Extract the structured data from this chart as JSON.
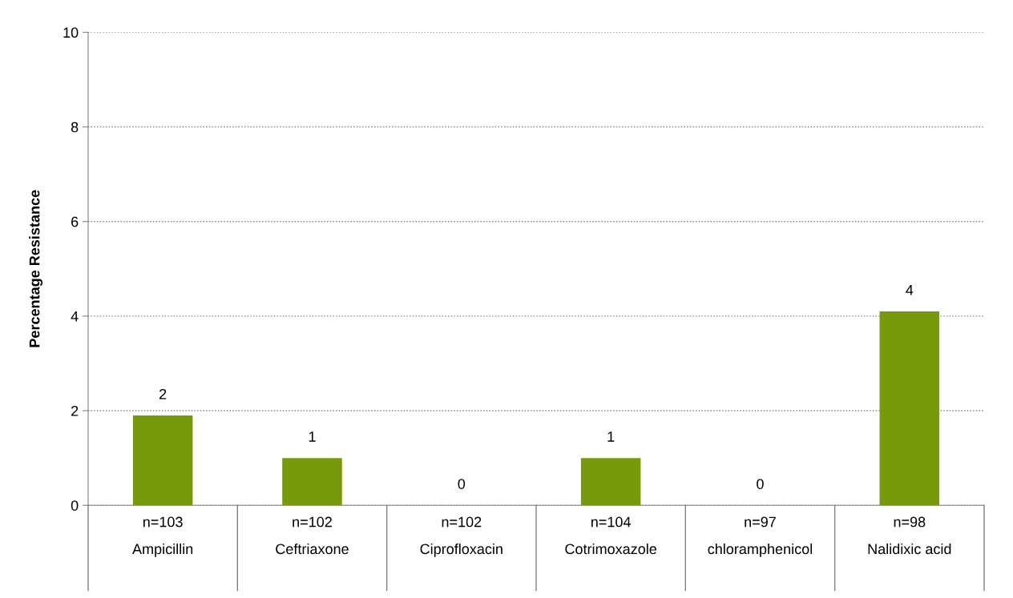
{
  "chart_data": {
    "type": "bar",
    "ylabel": "Percentage Resistance",
    "categories": [
      "n=103\nAmpicillin",
      "n=102\nCeftriaxone",
      "n=102\nCiprofloxacin",
      "n=104\nCotrimoxazole",
      "n=97\nchloramphenicol",
      "n=98\nNalidixic acid"
    ],
    "values": [
      1.9,
      1.0,
      0,
      1.0,
      0,
      4.1
    ],
    "value_labels": [
      "2",
      "1",
      "0",
      "1",
      "0",
      "4"
    ],
    "color": "#779a0c",
    "ylim": [
      0,
      10
    ],
    "yticks": [
      0,
      2,
      4,
      6,
      8,
      10
    ],
    "grid": "y",
    "legend": false
  }
}
